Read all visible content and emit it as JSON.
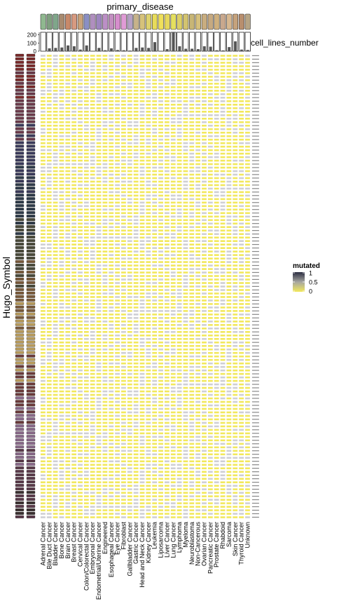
{
  "chart_data": {
    "type": "heatmap",
    "top_title": "primary_disease",
    "y_title": "Hugo_Symbol",
    "bar_title": "cell_lines_number",
    "bar_ticks": [
      0,
      100,
      200
    ],
    "bar_ylim": [
      0,
      230
    ],
    "columns": [
      "Adrenal Cancer",
      "Bile Duct Cancer",
      "Bladder Cancer",
      "Bone Cancer",
      "Brain Cancer",
      "Breast Cancer",
      "Cervical Cancer",
      "Colon/Colorectal Cancer",
      "Embryonal Cancer",
      "Endometrial/Uterine Cancer",
      "Engineered",
      "Esophageal Cancer",
      "Eye Cancer",
      "Fibroblast",
      "Gallbladder Cancer",
      "Gastric Cancer",
      "Head and Neck Cancer",
      "Kidney Cancer",
      "Leukemia",
      "Liposarcoma",
      "Liver Cancer",
      "Lung Cancer",
      "Lymphoma",
      "Myeloma",
      "Neuroblastoma",
      "Non-Cancerous",
      "Ovarian Cancer",
      "Pancreatic Cancer",
      "Prostate Cancer",
      "Rhabdoid",
      "Sarcoma",
      "Skin Cancer",
      "Thyroid Cancer",
      "Unknown"
    ],
    "column_colors": [
      "#8fb88f",
      "#7f9f7f",
      "#7fa68a",
      "#a88a6f",
      "#c8896a",
      "#d79a80",
      "#c9a27a",
      "#8a8fc4",
      "#b08fbf",
      "#9e86c0",
      "#bc8fc6",
      "#c38ec1",
      "#d68dcc",
      "#e09bd6",
      "#b5a0c5",
      "#c7b38a",
      "#d6c27a",
      "#ddd26d",
      "#e8dc5a",
      "#f0e05a",
      "#e6d85c",
      "#e5e05e",
      "#dccf66",
      "#d3c36f",
      "#c8b676",
      "#d6c17d",
      "#c9ad7f",
      "#c6a980",
      "#cfb07e",
      "#c9a88d",
      "#d8b890",
      "#c5a27c",
      "#b88e6d",
      "#b7a585"
    ],
    "cell_lines_number": [
      2,
      35,
      40,
      45,
      70,
      60,
      20,
      70,
      5,
      40,
      12,
      35,
      15,
      12,
      8,
      40,
      45,
      40,
      110,
      5,
      25,
      230,
      60,
      30,
      30,
      25,
      60,
      55,
      12,
      10,
      50,
      120,
      20,
      15
    ],
    "mutated_scale": {
      "label": "mutated",
      "ticks": [
        "1",
        "0.5",
        "0"
      ],
      "range": [
        0,
        1
      ],
      "high_color": "#2b2d42",
      "mid_color": "#a6a6a0",
      "low_color": "#f2e85c"
    },
    "row_count": 133
  }
}
